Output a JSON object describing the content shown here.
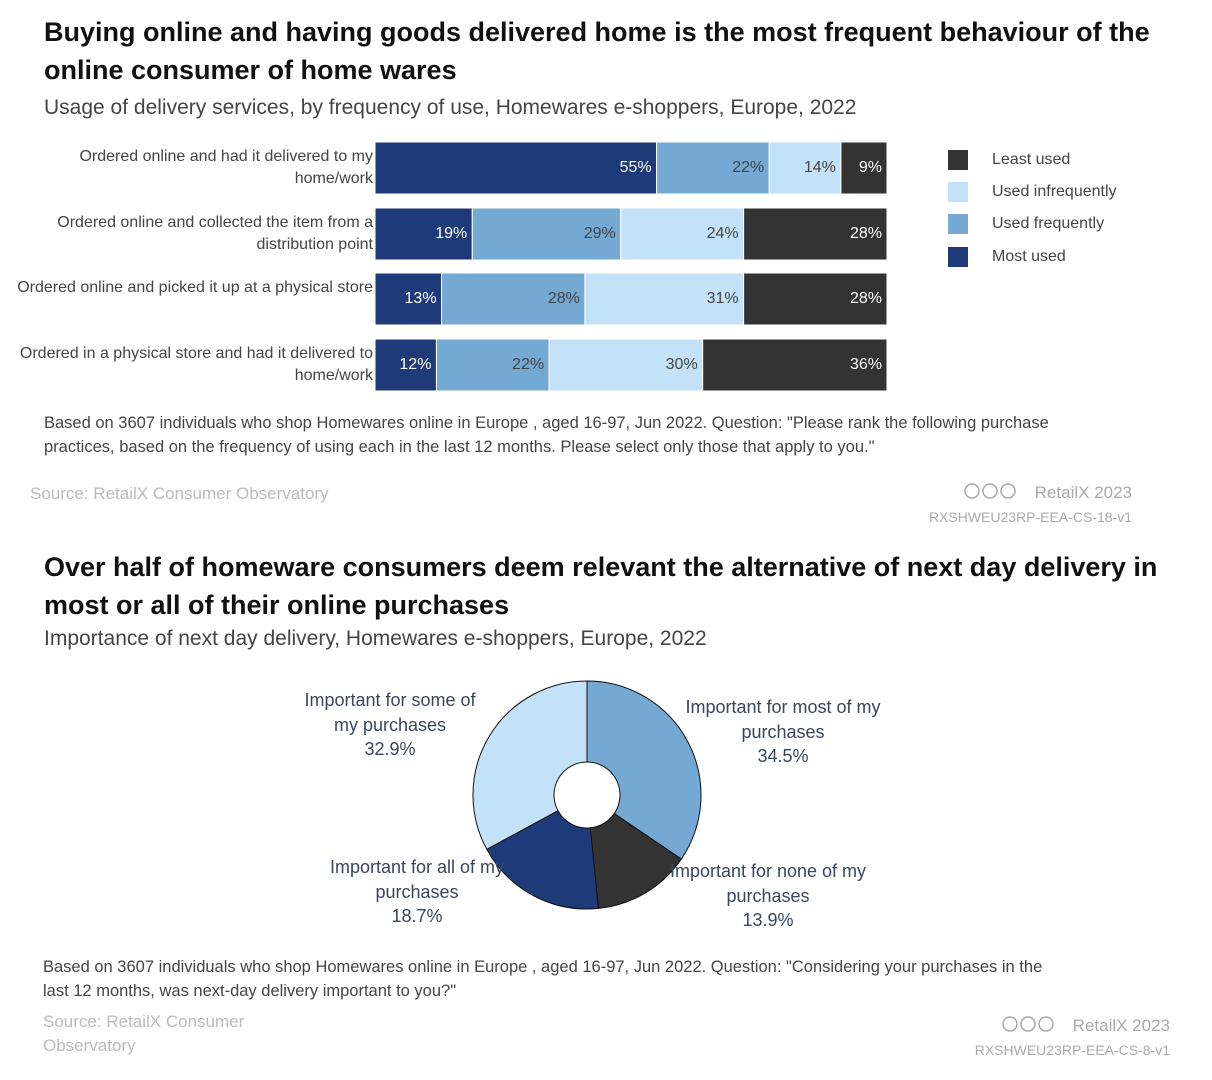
{
  "chart_data": [
    {
      "type": "stacked-barh",
      "title": "Buying online and having goods delivered home is the most frequent behaviour of the online consumer of home wares",
      "subtitle": "Usage of delivery services, by frequency of use, Homewares e-shoppers, Europe, 2022",
      "categories": [
        "Ordered online and had it delivered to my home/work",
        "Ordered online and collected the item from a distribution point",
        "Ordered online and picked it up at a physical store",
        "Ordered in a physical store and had it delivered to home/work"
      ],
      "series": [
        {
          "name": "Most used",
          "color": "#1f3a78",
          "values": [
            55,
            19,
            13,
            12
          ],
          "value_labels": [
            "55%",
            "19%",
            "13%",
            "12%"
          ]
        },
        {
          "name": "Used frequently",
          "color": "#74a9d4",
          "values": [
            22,
            29,
            28,
            22
          ],
          "value_labels": [
            "22%",
            "29%",
            "28%",
            "22%"
          ]
        },
        {
          "name": "Used infrequently",
          "color": "#c3e2f8",
          "values": [
            14,
            24,
            31,
            30
          ],
          "value_labels": [
            "14%",
            "24%",
            "31%",
            "30%"
          ]
        },
        {
          "name": "Least used",
          "color": "#333333",
          "values": [
            9,
            28,
            28,
            36
          ],
          "value_labels": [
            "9%",
            "28%",
            "28%",
            "36%"
          ]
        }
      ],
      "note": "Based on 3607 individuals who shop Homewares online in Europe , aged 16-97, Jun 2022. Question: \"Please rank the following purchase practices, based on the frequency of using each in the last 12 months. Please select only those that apply to you.\"",
      "source": "Source: RetailX Consumer Observatory",
      "credit": "RetailX 2023",
      "code": "RXSHWEU23RP-EEA-CS-18-v1"
    },
    {
      "type": "donut",
      "title": "Over half of homeware consumers deem relevant the alternative of next day delivery in most or all of their online purchases",
      "subtitle": "Importance of next day delivery, Homewares e-shoppers, Europe, 2022",
      "categories": [
        "Important for most of my purchases",
        "Important for none of my purchases",
        "Important for all of my purchases",
        "Important for some of my purchases"
      ],
      "values": [
        34.5,
        13.9,
        18.7,
        32.9
      ],
      "value_labels": [
        "34.5%",
        "13.9%",
        "18.7%",
        "32.9%"
      ],
      "colors": [
        "#74a9d4",
        "#333333",
        "#1f3a78",
        "#c3e2f8"
      ],
      "note": "Based on 3607 individuals who shop Homewares online in Europe , aged 16-97, Jun 2022. Question: \"Considering your purchases in the last 12 months, was next-day delivery important to you?\"",
      "source": "Source: RetailX Consumer Observatory",
      "credit": "RetailX 2023",
      "code": "RXSHWEU23RP-EEA-CS-8-v1"
    }
  ]
}
